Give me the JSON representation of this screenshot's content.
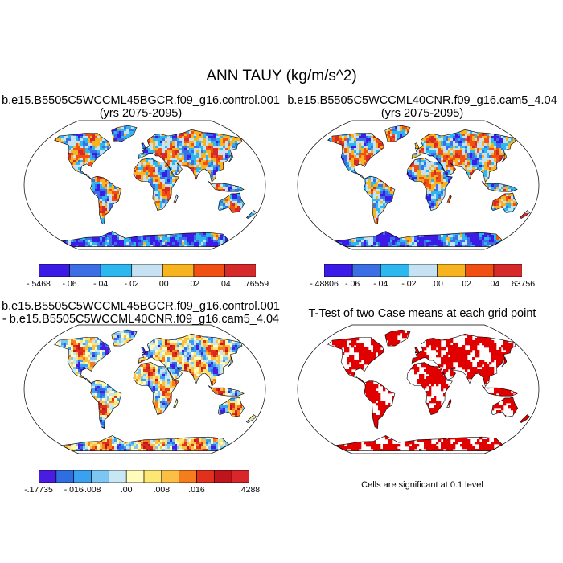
{
  "main_title": "ANN TAUY (kg/m/s^2)",
  "panels": [
    {
      "title_line1": "b.e15.B5505C5WCCML45BGCR.f09_g16.control.001",
      "title_line2": "(yrs 2075-2095)",
      "colorbar": {
        "colors": [
          "#3c1be6",
          "#3b6fe3",
          "#2db7ef",
          "#c6e2f2",
          "#f8b41e",
          "#f14f14",
          "#d62a2a"
        ],
        "labels": [
          "-.5468",
          "-.06",
          "-.04",
          "-.02",
          ".00",
          ".02",
          ".04",
          ".76559"
        ]
      }
    },
    {
      "title_line1": "b.e15.B5505C5WCCML40CNR.f09_g16.cam5_4.04",
      "title_line2": "(yrs 2075-2095)",
      "colorbar": {
        "colors": [
          "#3c1be6",
          "#3b6fe3",
          "#2db7ef",
          "#c6e2f2",
          "#f8b41e",
          "#f14f14",
          "#d62a2a"
        ],
        "labels": [
          "-.48806",
          "-.06",
          "-.04",
          "-.02",
          ".00",
          ".02",
          ".04",
          ".63756"
        ]
      }
    },
    {
      "title_line1": "b.e15.B5505C5WCCML45BGCR.f09_g16.control.001",
      "title_line2": "- b.e15.B5505C5WCCML40CNR.f09_g16.cam5_4.04",
      "colorbar": {
        "colors": [
          "#4a1be0",
          "#2f6ee0",
          "#3aa0f0",
          "#7dc6f2",
          "#c9e6f5",
          "#fffbbb",
          "#fde774",
          "#fbbf45",
          "#f57d1e",
          "#e1301c",
          "#c0141c",
          "#d9262a"
        ],
        "labels": [
          "-.17735",
          "-.016",
          "-.008",
          ".00",
          ".008",
          ".016",
          ".4288"
        ],
        "label_boundaries": [
          0,
          2,
          3,
          5,
          7,
          9,
          12
        ]
      }
    },
    {
      "title_line1": "T-Test of two Case means at each grid point",
      "footnote": "Cells are significant at 0.1 level"
    }
  ],
  "colors": {
    "ocean": "#ffffff",
    "significant": "#e10000"
  }
}
